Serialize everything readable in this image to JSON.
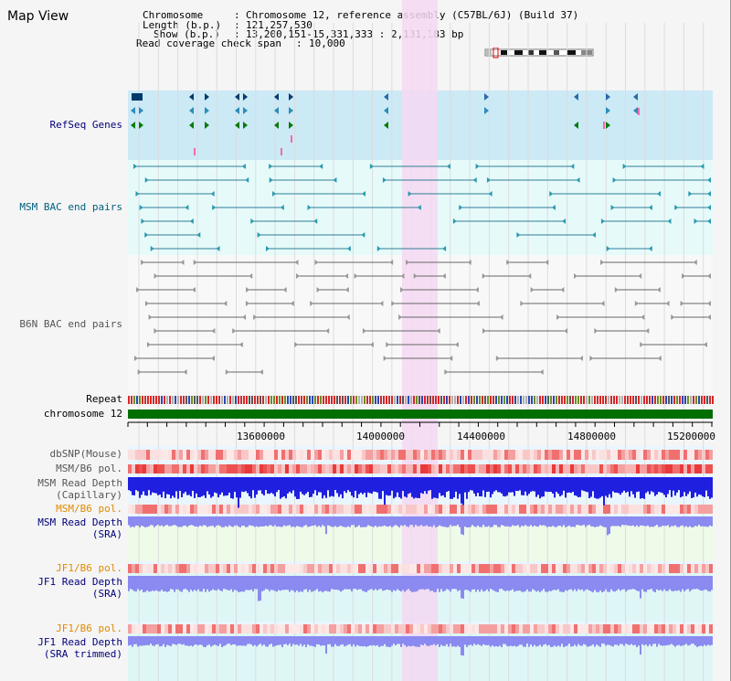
{
  "window": {
    "title": "Map View"
  },
  "header": {
    "chromosome_key": "Chromosome",
    "chromosome_value": "Chromosome 12, reference assembly (C57BL/6J) (Build 37)",
    "length_key": "Length (b.p.)",
    "length_value": "121,257,530",
    "show_key": "Show (b.p.)",
    "show_value": "13,200,151-15,331,333 : 2,131,183 bp",
    "coverage_key": "Read coverage check span",
    "coverage_value": "10,000"
  },
  "tracks": {
    "refseq_genes": "RefSeq Genes",
    "msm_bac": "MSM BAC end pairs",
    "b6n_bac": "B6N BAC end pairs",
    "repeat": "Repeat",
    "chromosome": "chromosome 12",
    "dbsnp": "dbSNP(Mouse)",
    "msm_b6_pol_1": "MSM/B6 pol.",
    "msm_read_depth_cap_1": "MSM Read Depth",
    "msm_read_depth_cap_2": "(Capillary)",
    "msm_b6_pol_2": "MSM/B6 pol.",
    "msm_read_depth_sra_1": "MSM Read Depth",
    "msm_read_depth_sra_2": "(SRA)",
    "jf1_b6_pol_1": "JF1/B6 pol.",
    "jf1_read_depth_sra_1": "JF1 Read Depth",
    "jf1_read_depth_sra_2": "(SRA)",
    "jf1_b6_pol_2": "JF1/B6 pol.",
    "jf1_read_depth_trim_1": "JF1 Read Depth",
    "jf1_read_depth_trim_2": "(SRA trimmed)"
  },
  "axis": {
    "ticks": [
      "13600000",
      "14000000",
      "14400000",
      "14800000",
      "15200000"
    ]
  },
  "colors": {
    "highlight": "#f5d8f2",
    "refseq_bg": "#cce9f6",
    "bac_bg": "#e6fafa",
    "chromosome_bar": "#006e00",
    "read_depth_blue": "#1f1fe0",
    "read_depth_light": "#8a8af0",
    "snp_red": "#f07070"
  }
}
